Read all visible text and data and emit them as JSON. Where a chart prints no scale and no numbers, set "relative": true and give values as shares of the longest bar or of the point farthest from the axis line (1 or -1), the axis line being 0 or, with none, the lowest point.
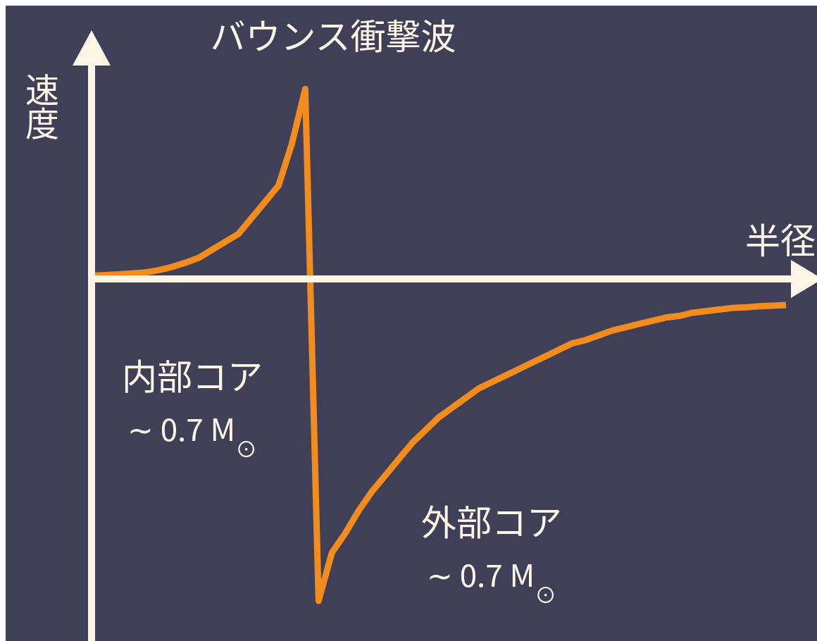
{
  "chart_data": {
    "type": "line",
    "relative": true,
    "xlabel": "半径",
    "ylabel": "速度",
    "annotations": [
      "バウンス衝撃波",
      "内部コア",
      "∼ 0.7 M$_{⊙}$",
      "外部コア",
      "∼ 0.7 M$_{⊙}$"
    ],
    "categories": [
      null,
      null,
      null,
      null,
      null,
      null,
      null,
      null,
      null,
      null,
      null,
      null,
      null,
      null,
      null,
      null,
      null,
      null,
      null,
      null,
      null,
      null,
      null,
      null,
      null,
      null,
      null,
      null,
      null,
      null,
      null,
      null,
      null,
      null,
      null,
      null,
      null,
      null,
      null,
      null,
      null,
      null,
      null,
      null,
      null,
      null,
      null,
      null,
      null,
      null,
      null,
      null,
      null
    ],
    "series": [
      {
        "color": "#f28c1e",
        "values": [
          0.01,
          0.012,
          0.014,
          0.017,
          0.02,
          0.027,
          0.037,
          0.05,
          0.065,
          0.09,
          0.115,
          0.14,
          0.19,
          0.24,
          0.29,
          0.42,
          0.59,
          -1,
          -0.85,
          -0.79,
          -0.72,
          -0.66,
          -0.61,
          -0.56,
          -0.51,
          -0.47,
          -0.43,
          -0.4,
          -0.37,
          -0.34,
          -0.32,
          -0.3,
          -0.28,
          -0.26,
          -0.24,
          -0.22,
          -0.2,
          -0.19,
          -0.175,
          -0.16,
          -0.15,
          -0.14,
          -0.13,
          -0.12,
          -0.115,
          -0.105,
          -0.1,
          -0.095,
          -0.09,
          -0.088,
          -0.085,
          -0.083,
          -0.081
        ]
      }
    ]
  }
}
